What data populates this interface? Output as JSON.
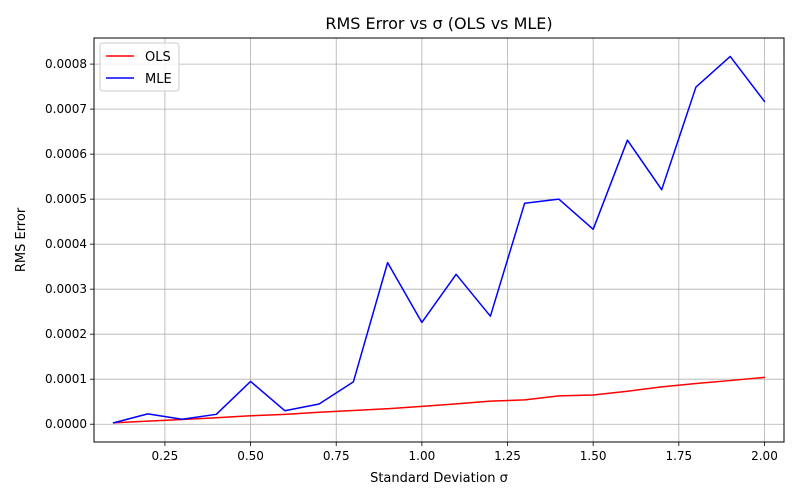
{
  "chart_data": {
    "type": "line",
    "title": "RMS Error vs σ (OLS vs MLE)",
    "xlabel": "Standard Deviation σ",
    "ylabel": "RMS Error",
    "xlim": [
      0.043,
      2.057
    ],
    "ylim": [
      -3.95e-05,
      0.000858
    ],
    "xticks": [
      0.25,
      0.5,
      0.75,
      1.0,
      1.25,
      1.5,
      1.75,
      2.0
    ],
    "xtick_labels": [
      "0.25",
      "0.50",
      "0.75",
      "1.00",
      "1.25",
      "1.50",
      "1.75",
      "2.00"
    ],
    "yticks": [
      0.0,
      0.0001,
      0.0002,
      0.0003,
      0.0004,
      0.0005,
      0.0006,
      0.0007,
      0.0008
    ],
    "ytick_labels": [
      "0.0000",
      "0.0001",
      "0.0002",
      "0.0003",
      "0.0004",
      "0.0005",
      "0.0006",
      "0.0007",
      "0.0008"
    ],
    "grid": true,
    "legend_position": "top-left",
    "x": [
      0.1,
      0.2,
      0.3,
      0.4,
      0.5,
      0.6,
      0.7,
      0.8,
      0.9,
      1.0,
      1.1,
      1.2,
      1.3,
      1.4,
      1.5,
      1.6,
      1.7,
      1.8,
      1.9,
      2.0
    ],
    "series": [
      {
        "name": "OLS",
        "color": "#ff0000",
        "values": [
          3.2e-06,
          6.8e-06,
          1.05e-05,
          1.45e-05,
          1.88e-05,
          2.2e-05,
          2.67e-05,
          3.04e-05,
          3.45e-05,
          3.96e-05,
          4.52e-05,
          5.13e-05,
          5.4e-05,
          6.3e-05,
          6.48e-05,
          7.33e-05,
          8.3e-05,
          9.05e-05,
          9.7e-05,
          0.000104
        ]
      },
      {
        "name": "MLE",
        "color": "#0000ff",
        "values": [
          3e-06,
          2.3e-05,
          1.1e-05,
          2.2e-05,
          9.5e-05,
          3e-05,
          4.5e-05,
          9.4e-05,
          0.000359,
          0.000226,
          0.000333,
          0.00024,
          0.000491,
          0.0005,
          0.000433,
          0.000631,
          0.000521,
          0.000749,
          0.000817,
          0.000717
        ]
      }
    ]
  }
}
